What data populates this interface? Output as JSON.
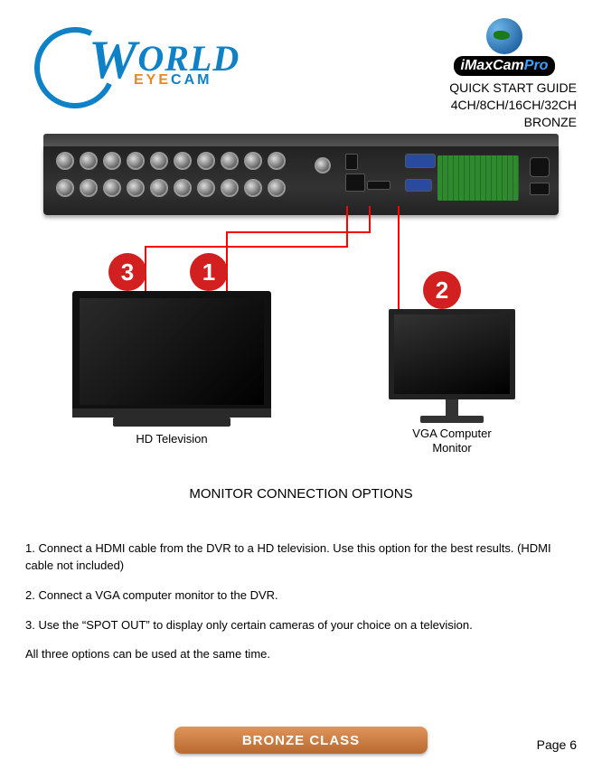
{
  "header": {
    "logo_world": "ORLD",
    "logo_w": "W",
    "logo_sub_eye": "EYE",
    "logo_sub_cam": "CAM",
    "imax_text_a": "iMaxCam",
    "imax_text_b": "Pro",
    "guide_line1": "QUICK START GUIDE",
    "guide_line2": "4CH/8CH/16CH/32CH",
    "guide_line3": "BRONZE"
  },
  "diagram": {
    "badges": {
      "b1": "1",
      "b2": "2",
      "b3": "3"
    },
    "tv_caption": "HD Television",
    "mon_caption_l1": "VGA Computer",
    "mon_caption_l2": "Monitor",
    "section_title": "MONITOR CONNECTION OPTIONS",
    "colors": {
      "line": "#ff0000",
      "badge_bg": "#d21f1f",
      "badge_fg": "#ffffff"
    }
  },
  "instructions": {
    "p1": "1. Connect a HDMI cable from the DVR to a HD television. Use this option for the best results. (HDMI cable not included)",
    "p2": "2. Connect a VGA computer monitor to the DVR.",
    "p3": "3. Use the “SPOT OUT” to display only certain cameras of your choice on a television.",
    "p4": "All three options can be used at the same time."
  },
  "footer": {
    "bronze": "BRONZE CLASS",
    "page": "Page 6"
  }
}
